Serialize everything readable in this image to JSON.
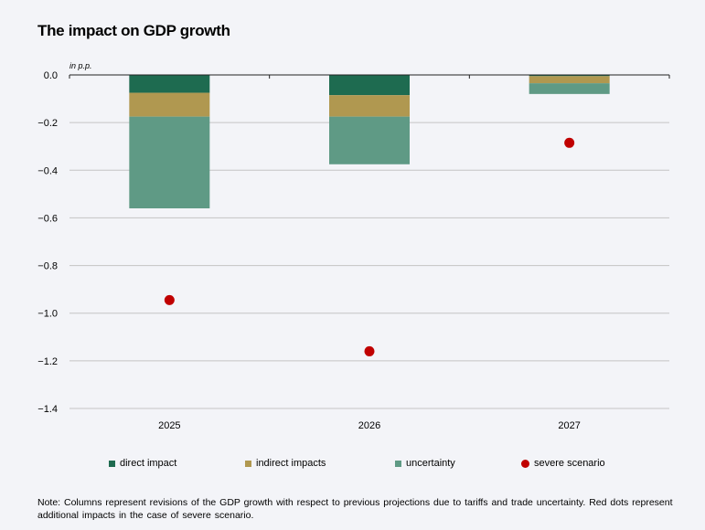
{
  "title": "The impact on GDP growth",
  "unit_label": "in p.p.",
  "legend": {
    "direct": "direct impact",
    "indirect": "indirect impacts",
    "uncertainty": "uncertainty",
    "severe": "severe scenario"
  },
  "note": "Note: Columns represent revisions of the GDP growth with respect to previous projections due to tariffs and trade uncertainty. Red dots represent additional impacts in the case of severe scenario.",
  "colors": {
    "direct": "#1e6b50",
    "indirect": "#b09850",
    "uncertainty": "#5f9a85",
    "severe": "#c00000",
    "grid": "#c4c4c4",
    "axis": "#222222"
  },
  "chart_data": {
    "type": "bar",
    "stacked": true,
    "categories": [
      "2025",
      "2026",
      "2027"
    ],
    "series": [
      {
        "name": "direct impact",
        "values": [
          -0.075,
          -0.085,
          -0.005
        ]
      },
      {
        "name": "indirect impacts",
        "values": [
          -0.1,
          -0.09,
          -0.03
        ]
      },
      {
        "name": "uncertainty",
        "values": [
          -0.385,
          -0.2,
          -0.045
        ]
      }
    ],
    "points": {
      "name": "severe scenario",
      "values": [
        -0.945,
        -1.16,
        -0.285
      ]
    },
    "ylim": [
      -1.4,
      0.0
    ],
    "yticks": [
      0.0,
      -0.2,
      -0.4,
      -0.6,
      -0.8,
      -1.0,
      -1.2,
      -1.4
    ],
    "ytick_labels": [
      "0.0",
      "−0.2",
      "−0.4",
      "−0.6",
      "−0.8",
      "−1.0",
      "−1.2",
      "−1.4"
    ],
    "title": "The impact on GDP growth",
    "ylabel": "in p.p.",
    "grid": true,
    "legend_position": "bottom"
  }
}
